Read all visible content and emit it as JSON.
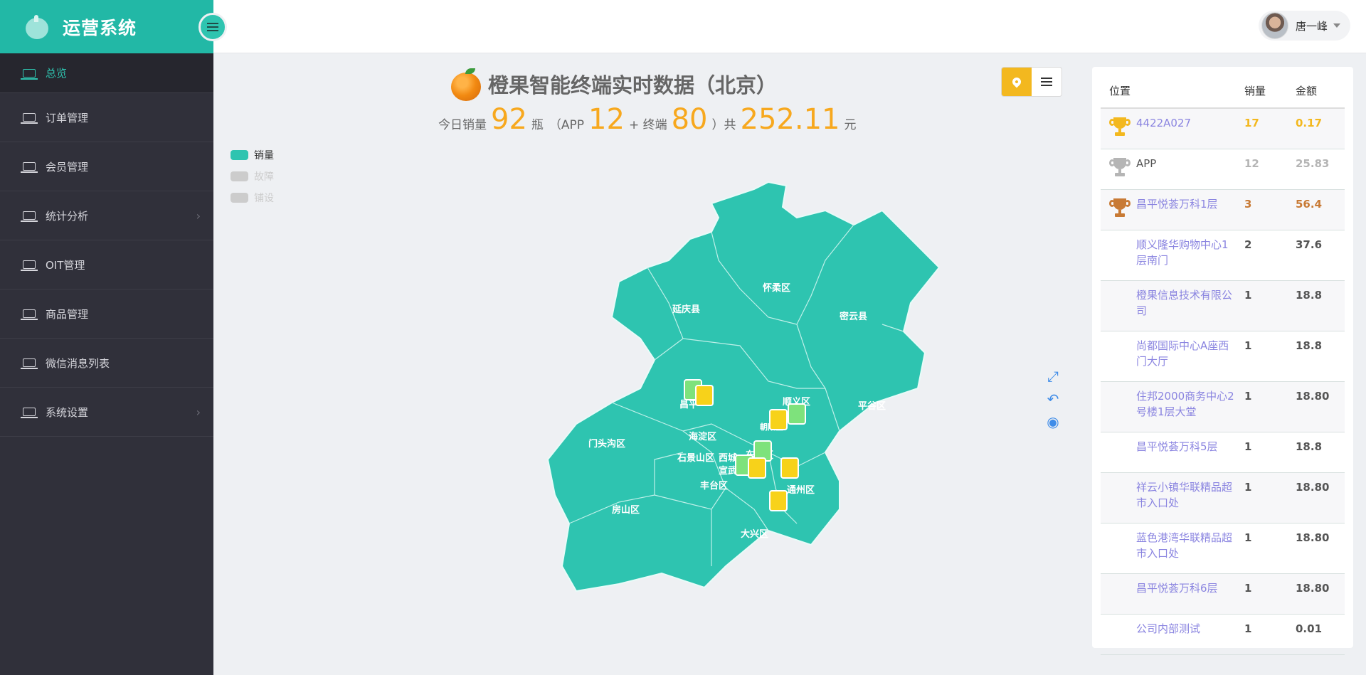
{
  "app": {
    "title": "运营系统"
  },
  "sidebar": {
    "items": [
      {
        "label": "总览",
        "active": true,
        "has_children": false
      },
      {
        "label": "订单管理",
        "active": false,
        "has_children": false
      },
      {
        "label": "会员管理",
        "active": false,
        "has_children": false
      },
      {
        "label": "统计分析",
        "active": false,
        "has_children": true
      },
      {
        "label": "OIT管理",
        "active": false,
        "has_children": false
      },
      {
        "label": "商品管理",
        "active": false,
        "has_children": false
      },
      {
        "label": "微信消息列表",
        "active": false,
        "has_children": false
      },
      {
        "label": "系统设置",
        "active": false,
        "has_children": true
      }
    ]
  },
  "header": {
    "user_name": "唐一峰"
  },
  "summary": {
    "title": "橙果智能终端实时数据（北京）",
    "prefix": "今日销量",
    "total_qty": "92",
    "unit_bottle": "瓶",
    "open_paren": "（APP",
    "app_qty": "12",
    "plus_terminal": "+ 终端",
    "terminal_qty": "80",
    "close_total": "）共",
    "amount": "252.11",
    "unit_yuan": "元"
  },
  "legend": [
    {
      "label": "销量",
      "color": "#2ec4b0",
      "active": true
    },
    {
      "label": "故障",
      "color": "#cccccc",
      "active": false
    },
    {
      "label": "铺设",
      "color": "#cccccc",
      "active": false
    }
  ],
  "map": {
    "fill": "#2ec4b0",
    "districts": [
      "延庆县",
      "怀柔区",
      "密云县",
      "昌平",
      "顺义区",
      "平谷区",
      "门头沟区",
      "海淀区",
      "石景山区",
      "西城",
      "东城区",
      "宣武区",
      "丰台区",
      "朝阳区",
      "通州区",
      "房山区",
      "大兴区"
    ]
  },
  "table": {
    "headers": {
      "location": "位置",
      "qty": "销量",
      "amount": "金额"
    },
    "rows": [
      {
        "location": "4422A027",
        "qty": "17",
        "amount": "0.17",
        "rank": "gold",
        "color": "#f3b81f"
      },
      {
        "location": "APP",
        "qty": "12",
        "amount": "25.83",
        "rank": "silver",
        "color": "#b5b5b5"
      },
      {
        "location": "昌平悦荟万科1层",
        "qty": "3",
        "amount": "56.4",
        "rank": "bronze",
        "color": "#c87a35"
      },
      {
        "location": "顺义隆华购物中心1层南门",
        "qty": "2",
        "amount": "37.6"
      },
      {
        "location": "橙果信息技术有限公司",
        "qty": "1",
        "amount": "18.8"
      },
      {
        "location": "尚都国际中心A座西门大厅",
        "qty": "1",
        "amount": "18.8"
      },
      {
        "location": "住邦2000商务中心2号楼1层大堂",
        "qty": "1",
        "amount": "18.80"
      },
      {
        "location": "昌平悦荟万科5层",
        "qty": "1",
        "amount": "18.8"
      },
      {
        "location": "祥云小镇华联精品超市入口处",
        "qty": "1",
        "amount": "18.80"
      },
      {
        "location": "蓝色港湾华联精品超市入口处",
        "qty": "1",
        "amount": "18.80"
      },
      {
        "location": "昌平悦荟万科6层",
        "qty": "1",
        "amount": "18.80"
      },
      {
        "location": "公司内部测试",
        "qty": "1",
        "amount": "0.01"
      }
    ]
  }
}
